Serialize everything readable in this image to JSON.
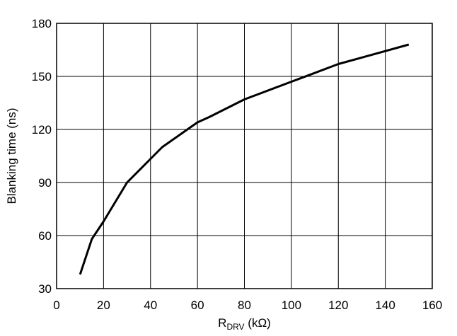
{
  "chart_data": {
    "type": "line",
    "title": "",
    "xlabel": {
      "main": "R",
      "sub": "DRV",
      "unit": " (kΩ)"
    },
    "ylabel": "Blanking time (ns)",
    "xlim": [
      0,
      160
    ],
    "ylim": [
      30,
      180
    ],
    "xticks": [
      0,
      20,
      40,
      60,
      80,
      100,
      120,
      140,
      160
    ],
    "yticks": [
      30,
      60,
      90,
      120,
      150,
      180
    ],
    "grid": true,
    "legend": "none",
    "colors": {
      "line": "#000000",
      "grid": "#000000",
      "background": "#ffffff"
    },
    "series": [
      {
        "x": [
          10,
          15,
          20,
          30,
          45,
          60,
          65,
          80,
          100,
          105,
          120,
          135,
          150
        ],
        "y": [
          38,
          58,
          68,
          90,
          110,
          124,
          127,
          137,
          147,
          149.5,
          157,
          162.5,
          168
        ]
      }
    ]
  }
}
